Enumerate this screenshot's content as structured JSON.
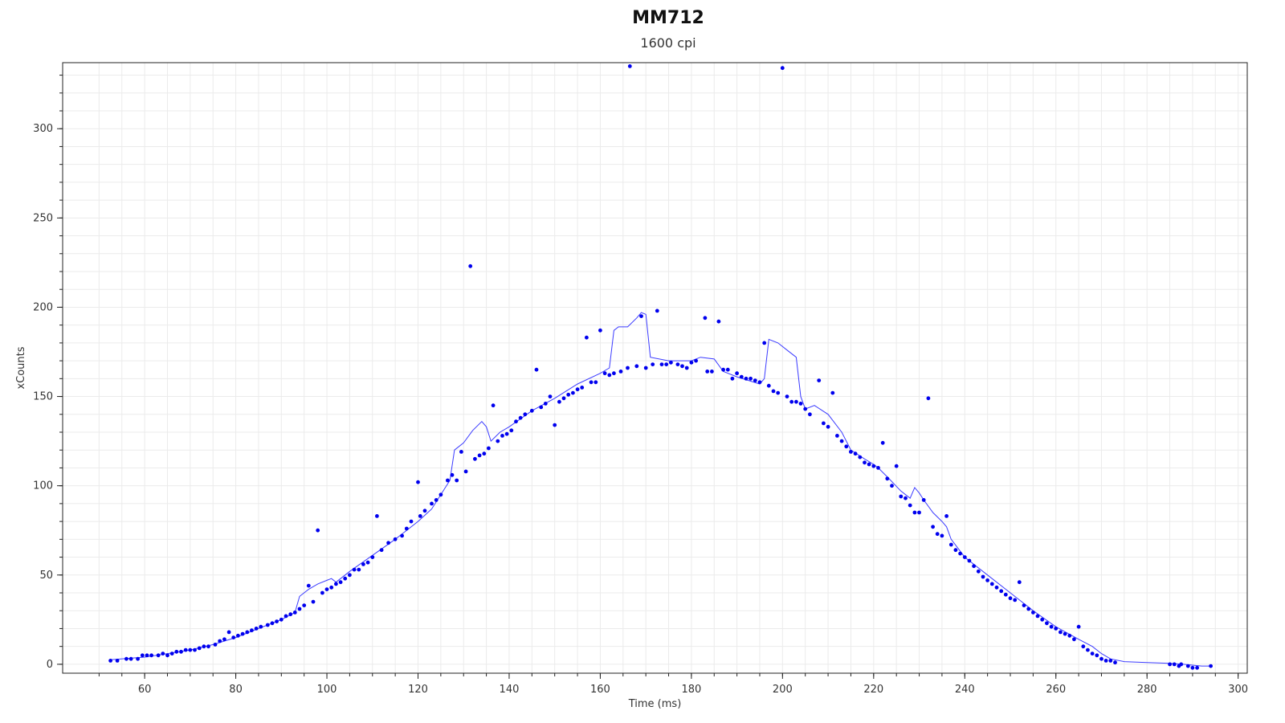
{
  "chart_data": {
    "type": "scatter",
    "title": "MM712",
    "subtitle": "1600 cpi",
    "xlabel": "Time (ms)",
    "ylabel": "xCounts",
    "xlim": [
      42,
      302
    ],
    "ylim": [
      -5,
      337
    ],
    "xticks": [
      60,
      80,
      100,
      120,
      140,
      160,
      180,
      200,
      220,
      240,
      260,
      280,
      300
    ],
    "yticks": [
      0,
      50,
      100,
      150,
      200,
      250,
      300
    ],
    "grid": true,
    "colors": {
      "series": "#0000ee",
      "line": "#3b3bff",
      "grid": "#ebebeb",
      "axis": "#222222"
    },
    "series": [
      {
        "type": "scatter",
        "points": [
          [
            52.5,
            2
          ],
          [
            54,
            2
          ],
          [
            56,
            3
          ],
          [
            57,
            3
          ],
          [
            58.5,
            3
          ],
          [
            59.5,
            5
          ],
          [
            60.5,
            5
          ],
          [
            61.5,
            5
          ],
          [
            63,
            5
          ],
          [
            64,
            6
          ],
          [
            65,
            5
          ],
          [
            66,
            6
          ],
          [
            67,
            7
          ],
          [
            68,
            7
          ],
          [
            69,
            8
          ],
          [
            70,
            8
          ],
          [
            71,
            8
          ],
          [
            72,
            9
          ],
          [
            73,
            10
          ],
          [
            74,
            10
          ],
          [
            75.5,
            11
          ],
          [
            76.5,
            13
          ],
          [
            77.5,
            14
          ],
          [
            78.5,
            18
          ],
          [
            79.5,
            15
          ],
          [
            80.5,
            16
          ],
          [
            81.5,
            17
          ],
          [
            82.5,
            18
          ],
          [
            83.5,
            19
          ],
          [
            84.5,
            20
          ],
          [
            85.5,
            21
          ],
          [
            87,
            22
          ],
          [
            88,
            23
          ],
          [
            89,
            24
          ],
          [
            90,
            25
          ],
          [
            91,
            27
          ],
          [
            92,
            28
          ],
          [
            93,
            29
          ],
          [
            94,
            31
          ],
          [
            95,
            33
          ],
          [
            96,
            44
          ],
          [
            97,
            35
          ],
          [
            98,
            75
          ],
          [
            99,
            40
          ],
          [
            100,
            42
          ],
          [
            101,
            43
          ],
          [
            102,
            45
          ],
          [
            103,
            46
          ],
          [
            104,
            48
          ],
          [
            105,
            50
          ],
          [
            106,
            53
          ],
          [
            107,
            53
          ],
          [
            108,
            56
          ],
          [
            109,
            57
          ],
          [
            110,
            60
          ],
          [
            111,
            83
          ],
          [
            112,
            64
          ],
          [
            113.5,
            68
          ],
          [
            115,
            70
          ],
          [
            116.5,
            72
          ],
          [
            117.5,
            76
          ],
          [
            118.5,
            80
          ],
          [
            120,
            102
          ],
          [
            120.5,
            83
          ],
          [
            121.5,
            86
          ],
          [
            123,
            90
          ],
          [
            124,
            92
          ],
          [
            125,
            95
          ],
          [
            126.5,
            103
          ],
          [
            127.5,
            106
          ],
          [
            128.5,
            103
          ],
          [
            129.5,
            119
          ],
          [
            130.5,
            108
          ],
          [
            131.5,
            223
          ],
          [
            132.5,
            115
          ],
          [
            133.5,
            117
          ],
          [
            134.5,
            118
          ],
          [
            135.5,
            121
          ],
          [
            136.5,
            145
          ],
          [
            137.5,
            125
          ],
          [
            138.5,
            128
          ],
          [
            139.5,
            129
          ],
          [
            140.5,
            131
          ],
          [
            141.5,
            136
          ],
          [
            142.5,
            138
          ],
          [
            143.5,
            140
          ],
          [
            145,
            142
          ],
          [
            146,
            165
          ],
          [
            147,
            144
          ],
          [
            148,
            146
          ],
          [
            149,
            150
          ],
          [
            150,
            134
          ],
          [
            151,
            147
          ],
          [
            152,
            149
          ],
          [
            153,
            151
          ],
          [
            154,
            152
          ],
          [
            155,
            154
          ],
          [
            156,
            155
          ],
          [
            157,
            183
          ],
          [
            158,
            158
          ],
          [
            159,
            158
          ],
          [
            160,
            187
          ],
          [
            161,
            163
          ],
          [
            162,
            162
          ],
          [
            163,
            163
          ],
          [
            164.5,
            164
          ],
          [
            166,
            166
          ],
          [
            166.5,
            335
          ],
          [
            168,
            167
          ],
          [
            169,
            195
          ],
          [
            170,
            166
          ],
          [
            171.5,
            168
          ],
          [
            172.5,
            198
          ],
          [
            173.5,
            168
          ],
          [
            174.5,
            168
          ],
          [
            175.5,
            169
          ],
          [
            177,
            168
          ],
          [
            178,
            167
          ],
          [
            179,
            166
          ],
          [
            180,
            169
          ],
          [
            181,
            170
          ],
          [
            183,
            194
          ],
          [
            183.5,
            164
          ],
          [
            184.5,
            164
          ],
          [
            186,
            192
          ],
          [
            187,
            165
          ],
          [
            188,
            165
          ],
          [
            189,
            160
          ],
          [
            190,
            163
          ],
          [
            191,
            161
          ],
          [
            192,
            160
          ],
          [
            193,
            160
          ],
          [
            194,
            159
          ],
          [
            195,
            158
          ],
          [
            196,
            180
          ],
          [
            197,
            156
          ],
          [
            198,
            153
          ],
          [
            199,
            152
          ],
          [
            200,
            334
          ],
          [
            201,
            150
          ],
          [
            202,
            147
          ],
          [
            203,
            147
          ],
          [
            204,
            146
          ],
          [
            205,
            143
          ],
          [
            206,
            140
          ],
          [
            208,
            159
          ],
          [
            209,
            135
          ],
          [
            210,
            133
          ],
          [
            211,
            152
          ],
          [
            212,
            128
          ],
          [
            213,
            125
          ],
          [
            214,
            122
          ],
          [
            215,
            119
          ],
          [
            216,
            118
          ],
          [
            217,
            116
          ],
          [
            218,
            113
          ],
          [
            219,
            112
          ],
          [
            220,
            111
          ],
          [
            221,
            110
          ],
          [
            222,
            124
          ],
          [
            223,
            104
          ],
          [
            224,
            100
          ],
          [
            225,
            111
          ],
          [
            226,
            94
          ],
          [
            227,
            93
          ],
          [
            228,
            89
          ],
          [
            229,
            85
          ],
          [
            230,
            85
          ],
          [
            231,
            92
          ],
          [
            232,
            149
          ],
          [
            233,
            77
          ],
          [
            234,
            73
          ],
          [
            235,
            72
          ],
          [
            236,
            83
          ],
          [
            237,
            67
          ],
          [
            238,
            64
          ],
          [
            239,
            62
          ],
          [
            240,
            60
          ],
          [
            241,
            58
          ],
          [
            242,
            55
          ],
          [
            243,
            52
          ],
          [
            244,
            49
          ],
          [
            245,
            47
          ],
          [
            246,
            45
          ],
          [
            247,
            43
          ],
          [
            248,
            41
          ],
          [
            249,
            39
          ],
          [
            250,
            37
          ],
          [
            251,
            36
          ],
          [
            252,
            46
          ],
          [
            253,
            33
          ],
          [
            254,
            31
          ],
          [
            255,
            29
          ],
          [
            256,
            27
          ],
          [
            257,
            25
          ],
          [
            258,
            23
          ],
          [
            259,
            21
          ],
          [
            260,
            20
          ],
          [
            261,
            18
          ],
          [
            262,
            17
          ],
          [
            263,
            16
          ],
          [
            264,
            14
          ],
          [
            265,
            21
          ],
          [
            266,
            10
          ],
          [
            267,
            8
          ],
          [
            268,
            6
          ],
          [
            269,
            5
          ],
          [
            270,
            3
          ],
          [
            271,
            2
          ],
          [
            272,
            2
          ],
          [
            273,
            1
          ],
          [
            285,
            0
          ],
          [
            286,
            0
          ],
          [
            287,
            -1
          ],
          [
            287.5,
            0
          ],
          [
            289,
            -1
          ],
          [
            290,
            -2
          ],
          [
            291,
            -2
          ],
          [
            294,
            -1
          ]
        ]
      },
      {
        "type": "line",
        "points": [
          [
            52.5,
            2.5
          ],
          [
            60,
            4
          ],
          [
            65,
            6
          ],
          [
            70,
            8
          ],
          [
            75,
            11
          ],
          [
            80,
            15
          ],
          [
            85,
            20
          ],
          [
            90,
            25
          ],
          [
            93,
            29
          ],
          [
            94,
            38
          ],
          [
            96,
            42
          ],
          [
            98,
            45
          ],
          [
            100,
            47
          ],
          [
            101,
            48
          ],
          [
            102,
            46
          ],
          [
            105,
            52
          ],
          [
            110,
            61
          ],
          [
            115,
            70
          ],
          [
            116,
            72
          ],
          [
            120,
            80
          ],
          [
            123,
            87
          ],
          [
            126,
            99
          ],
          [
            127,
            103
          ],
          [
            128,
            120
          ],
          [
            130,
            124
          ],
          [
            132,
            131
          ],
          [
            134,
            136
          ],
          [
            135,
            133
          ],
          [
            136,
            125
          ],
          [
            138,
            130
          ],
          [
            140,
            133
          ],
          [
            145,
            142
          ],
          [
            150,
            149
          ],
          [
            155,
            157
          ],
          [
            160,
            163
          ],
          [
            162,
            166
          ],
          [
            163,
            187
          ],
          [
            164,
            189
          ],
          [
            166,
            189
          ],
          [
            168,
            194
          ],
          [
            169,
            197
          ],
          [
            170,
            196
          ],
          [
            171,
            172
          ],
          [
            175,
            170
          ],
          [
            180,
            170
          ],
          [
            182,
            172
          ],
          [
            185,
            171
          ],
          [
            187,
            164
          ],
          [
            190,
            161
          ],
          [
            195,
            157
          ],
          [
            196,
            160
          ],
          [
            197,
            182
          ],
          [
            199,
            180
          ],
          [
            201,
            176
          ],
          [
            203,
            172
          ],
          [
            204,
            150
          ],
          [
            205,
            143
          ],
          [
            207,
            145
          ],
          [
            210,
            140
          ],
          [
            213,
            130
          ],
          [
            215,
            120
          ],
          [
            218,
            115
          ],
          [
            220,
            112
          ],
          [
            221,
            110
          ],
          [
            223,
            105
          ],
          [
            226,
            97
          ],
          [
            228,
            93
          ],
          [
            229,
            99
          ],
          [
            230,
            96
          ],
          [
            231,
            92
          ],
          [
            233,
            85
          ],
          [
            235,
            80
          ],
          [
            236,
            77
          ],
          [
            237,
            70
          ],
          [
            240,
            60
          ],
          [
            245,
            50
          ],
          [
            250,
            40
          ],
          [
            255,
            30
          ],
          [
            260,
            21
          ],
          [
            265,
            14
          ],
          [
            268,
            10
          ],
          [
            270,
            6
          ],
          [
            272,
            3
          ],
          [
            275,
            1.5
          ],
          [
            280,
            1
          ],
          [
            285,
            0.5
          ],
          [
            288,
            0
          ],
          [
            292,
            -1
          ],
          [
            294,
            -1
          ]
        ]
      }
    ]
  }
}
